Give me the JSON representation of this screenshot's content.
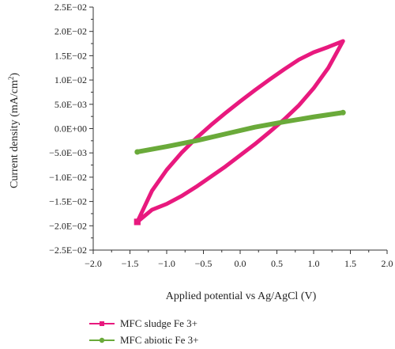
{
  "chart_data": {
    "type": "line",
    "xlabel": "Applied potential vs Ag/AgCl (V)",
    "ylabel_main": "Current density (mA/cm",
    "ylabel_sup": "2",
    "ylabel_close": ")",
    "xlim": [
      -2.0,
      2.0
    ],
    "ylim": [
      -0.025,
      0.025
    ],
    "x_ticks": [
      -2.0,
      -1.5,
      -1.0,
      -0.5,
      0.0,
      0.5,
      1.0,
      1.5,
      2.0
    ],
    "x_tick_labels": [
      "−2.0",
      "−1.5",
      "−1.0",
      "−0.5",
      "0.0",
      "0.5",
      "1.0",
      "1.5",
      "2.0"
    ],
    "y_ticks": [
      -0.025,
      -0.02,
      -0.015,
      -0.01,
      -0.005,
      0.0,
      0.005,
      0.01,
      0.015,
      0.02,
      0.025
    ],
    "y_tick_labels": [
      "−2.5E−02",
      "−2.0E−02",
      "−1.5E−02",
      "−1.0E−02",
      "−5.0E−03",
      "0.0E+00",
      "5.0E−03",
      "1.0E−02",
      "1.5E−02",
      "2.0E−02",
      "2.5E−02"
    ],
    "legend_position": "bottom-left",
    "series": [
      {
        "name": "MFC sludge Fe 3+",
        "color": "#e8197e",
        "marker": "square",
        "x": [
          -1.4,
          -1.2,
          -1.0,
          -0.8,
          -0.6,
          -0.4,
          -0.2,
          0.0,
          0.2,
          0.4,
          0.6,
          0.8,
          1.0,
          1.2,
          1.4,
          1.2,
          1.0,
          0.8,
          0.6,
          0.4,
          0.2,
          0.0,
          -0.2,
          -0.4,
          -0.6,
          -0.8,
          -1.0,
          -1.2,
          -1.4
        ],
        "y": [
          -0.0192,
          -0.0128,
          -0.0085,
          -0.005,
          -0.002,
          0.0007,
          0.0032,
          0.0056,
          0.0079,
          0.0101,
          0.0122,
          0.0142,
          0.0157,
          0.0168,
          0.018,
          0.0125,
          0.0083,
          0.0048,
          0.0019,
          -0.0007,
          -0.0032,
          -0.0055,
          -0.0078,
          -0.0099,
          -0.012,
          -0.0139,
          -0.0155,
          -0.0167,
          -0.0192
        ]
      },
      {
        "name": "MFC abiotic Fe 3+",
        "color": "#6aaa3a",
        "marker": "circle",
        "x": [
          -1.4,
          -1.0,
          -0.6,
          -0.2,
          0.2,
          0.6,
          1.0,
          1.4
        ],
        "y": [
          -0.0048,
          -0.0037,
          -0.0025,
          -0.0011,
          0.0003,
          0.0014,
          0.0024,
          0.0033
        ]
      }
    ]
  }
}
